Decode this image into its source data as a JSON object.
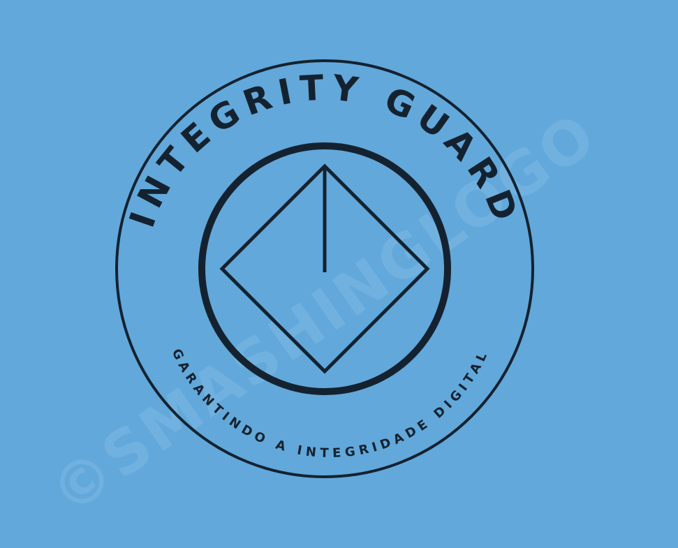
{
  "logo": {
    "brand_name": "INTEGRITY GUARD",
    "tagline": "GARANTINDO A INTEGRIDADE DIGITAL",
    "watermark": "©SMASHINGLOGO",
    "icon": "diamond-with-vertical-line-icon"
  },
  "colors": {
    "background": "#62a8da",
    "ink": "#142230",
    "watermark": "#74b3e0"
  }
}
